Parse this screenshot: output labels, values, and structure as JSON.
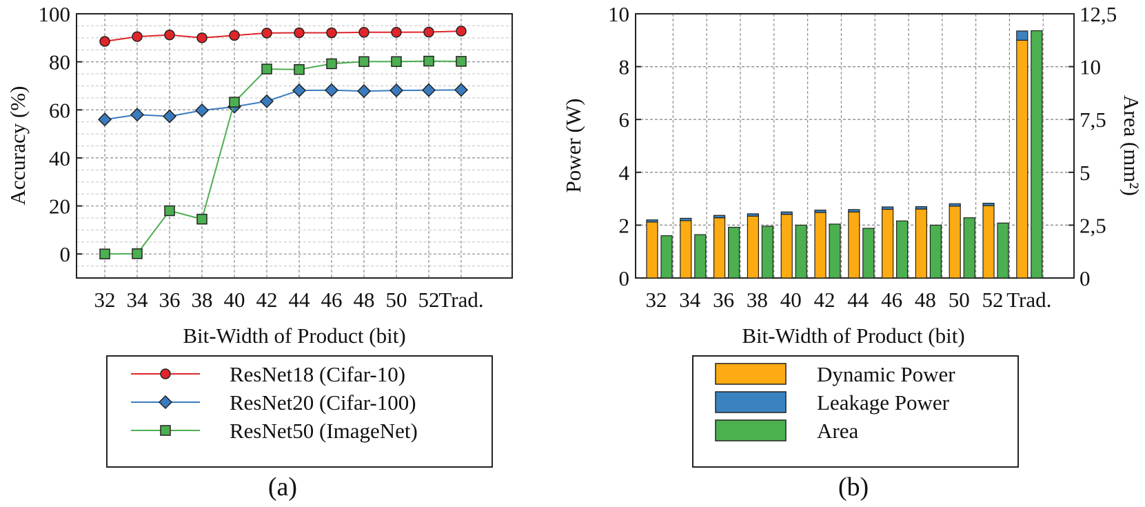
{
  "chart_data": [
    {
      "type": "line",
      "panel_label": "(a)",
      "xlabel": "Bit-Width of Product (bit)",
      "ylabel": "Accuracy (%)",
      "categories": [
        "32",
        "34",
        "36",
        "38",
        "40",
        "42",
        "44",
        "46",
        "48",
        "50",
        "52",
        "Trad."
      ],
      "ylim": [
        -10,
        100
      ],
      "yticks": [
        0,
        20,
        40,
        60,
        80,
        100
      ],
      "grid": true,
      "legend_position": "bottom",
      "series": [
        {
          "name": "ResNet18 (Cifar-10)",
          "color": "#e0252a",
          "marker": "circle",
          "values": [
            88.5,
            90.5,
            91.2,
            90.0,
            91.0,
            92.0,
            92.1,
            92.1,
            92.3,
            92.3,
            92.4,
            92.8
          ]
        },
        {
          "name": "ResNet20 (Cifar-100)",
          "color": "#3a7bbf",
          "marker": "diamond",
          "values": [
            56.0,
            58.0,
            57.3,
            59.8,
            61.3,
            63.6,
            68.1,
            68.2,
            67.8,
            68.1,
            68.2,
            68.3
          ]
        },
        {
          "name": "ResNet50 (ImageNet)",
          "color": "#4caf50",
          "marker": "square",
          "values": [
            0.0,
            0.1,
            18.0,
            14.5,
            63.2,
            77.0,
            76.8,
            79.2,
            80.1,
            80.1,
            80.3,
            80.2
          ]
        }
      ]
    },
    {
      "type": "bar",
      "panel_label": "(b)",
      "xlabel": "Bit-Width of Product (bit)",
      "ylabel": "Power (W)",
      "ylabel_right": "Area (mm²)",
      "categories": [
        "32",
        "34",
        "36",
        "38",
        "40",
        "42",
        "44",
        "46",
        "48",
        "50",
        "52",
        "Trad."
      ],
      "ylim": [
        0,
        10
      ],
      "yticks": [
        0,
        2,
        4,
        6,
        8,
        10
      ],
      "ylim_right": [
        0,
        12.5
      ],
      "yticks_right": [
        "0",
        "2,5",
        "5",
        "7,5",
        "10",
        "12,5"
      ],
      "grid": true,
      "legend_position": "bottom",
      "series": [
        {
          "name": "Dynamic Power",
          "color": "#fdab12",
          "axis": "left",
          "stack": "power",
          "values": [
            2.12,
            2.17,
            2.28,
            2.34,
            2.41,
            2.48,
            2.5,
            2.6,
            2.61,
            2.72,
            2.74,
            9.0
          ]
        },
        {
          "name": "Leakage Power",
          "color": "#3b83c0",
          "axis": "left",
          "stack": "power",
          "values": [
            0.08,
            0.09,
            0.09,
            0.09,
            0.09,
            0.09,
            0.09,
            0.09,
            0.09,
            0.09,
            0.09,
            0.35
          ]
        },
        {
          "name": "Area",
          "color": "#4caf50",
          "axis": "right",
          "values": [
            2.0,
            2.05,
            2.4,
            2.45,
            2.5,
            2.55,
            2.35,
            2.7,
            2.5,
            2.85,
            2.6,
            11.7
          ]
        }
      ]
    }
  ]
}
